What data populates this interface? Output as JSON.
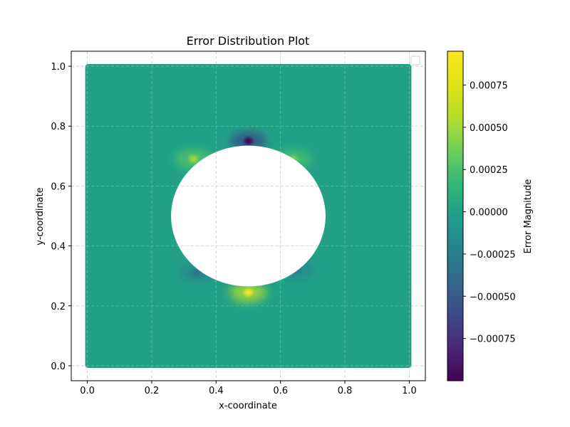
{
  "chart_data": {
    "type": "heatmap",
    "title": "Error Distribution Plot",
    "xlabel": "x-coordinate",
    "ylabel": "y-coordinate",
    "xlim": [
      -0.05,
      1.05
    ],
    "ylim": [
      -0.05,
      1.05
    ],
    "xticks": [
      0.0,
      0.2,
      0.4,
      0.6,
      0.8,
      1.0
    ],
    "yticks": [
      0.0,
      0.2,
      0.4,
      0.6,
      0.8,
      1.0
    ],
    "xtick_labels": [
      "0.0",
      "0.2",
      "0.4",
      "0.6",
      "0.8",
      "1.0"
    ],
    "ytick_labels": [
      "0.0",
      "0.2",
      "0.4",
      "0.6",
      "0.8",
      "1.0"
    ],
    "grid": true,
    "grid_style": "dashed",
    "legend": "top-right",
    "domain": {
      "x": [
        0.0,
        1.0
      ],
      "y": [
        0.0,
        1.0
      ]
    },
    "hole": {
      "shape": "ellipse",
      "center": [
        0.5,
        0.5
      ],
      "radius_x": 0.24,
      "radius_y": 0.235
    },
    "colormap": "viridis",
    "colorbar": {
      "label": "Error Magnitude",
      "vmin": -0.001,
      "vmax": 0.00095,
      "ticks": [
        0.00075,
        0.0005,
        0.00025,
        0.0,
        -0.00025,
        -0.0005,
        -0.00075
      ],
      "tick_labels": [
        "0.00075",
        "0.00050",
        "0.00025",
        "0.00000",
        "−0.00025",
        "−0.00050",
        "−0.00075"
      ]
    },
    "hotspots": [
      {
        "x": 0.5,
        "y": 0.75,
        "value": -0.001
      },
      {
        "x": 0.5,
        "y": 0.245,
        "value": 0.00095
      },
      {
        "x": 0.33,
        "y": 0.69,
        "value": 0.0005
      },
      {
        "x": 0.64,
        "y": 0.69,
        "value": 0.0004
      },
      {
        "x": 0.34,
        "y": 0.31,
        "value": -0.00035
      },
      {
        "x": 0.65,
        "y": 0.32,
        "value": -0.0003
      }
    ]
  }
}
